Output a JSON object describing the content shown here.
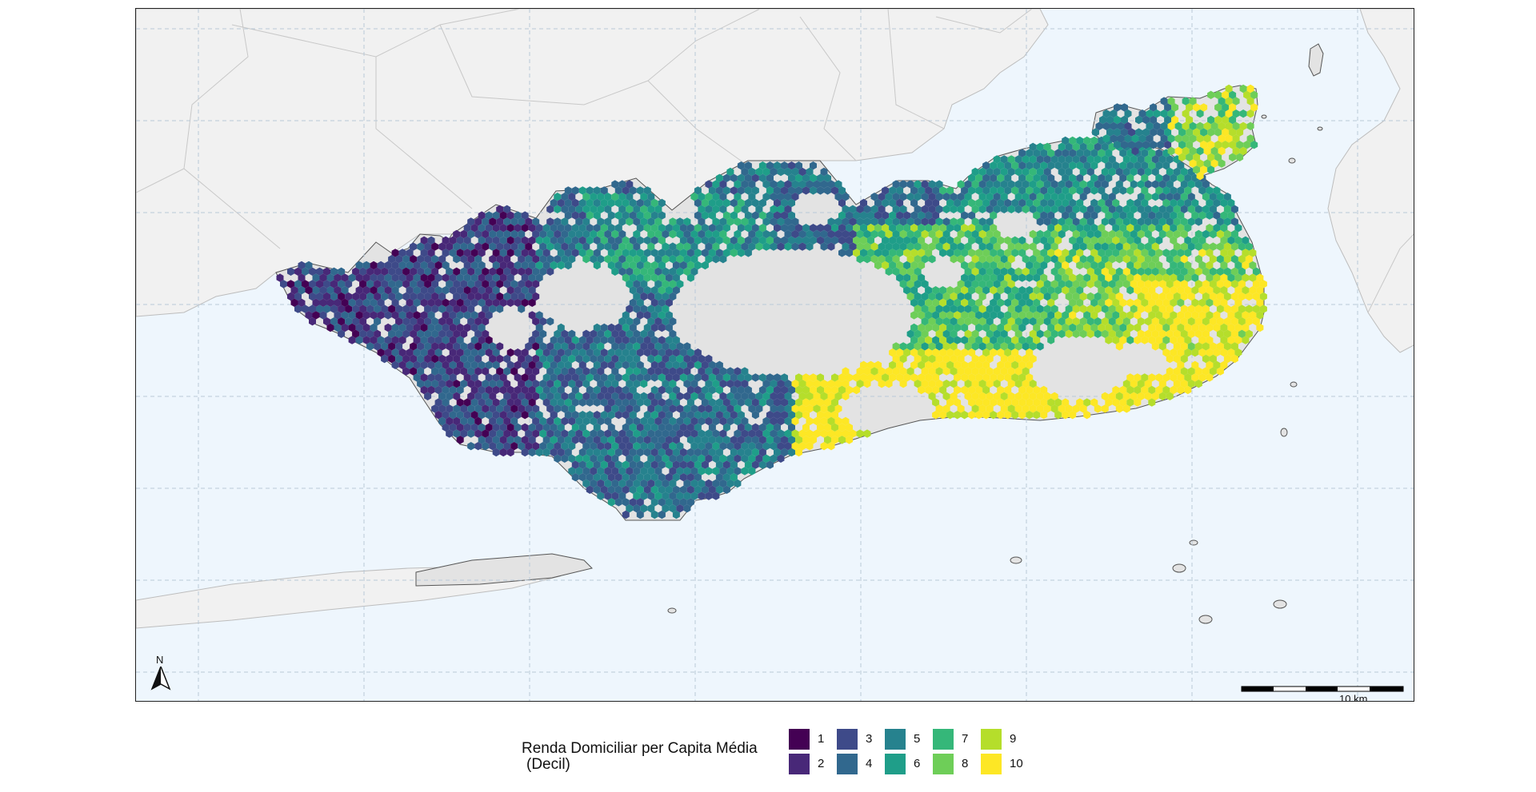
{
  "map": {
    "background_water": "#eef6fd",
    "land_outside": "#f1f1f1",
    "municipality_fill": "#e3e3e3",
    "gridline_color": "#b9c9d8",
    "scale_bar": {
      "label": "10 km"
    },
    "north_arrow": {
      "label": "N",
      "icon": "north-arrow-icon"
    }
  },
  "legend": {
    "title_line1": "Renda Domiciliar per Capita Média",
    "title_line2": "(Decil)",
    "items": [
      {
        "label": "1",
        "color": "#440154"
      },
      {
        "label": "2",
        "color": "#482878"
      },
      {
        "label": "3",
        "color": "#3e4a89"
      },
      {
        "label": "4",
        "color": "#31688e"
      },
      {
        "label": "5",
        "color": "#26828e"
      },
      {
        "label": "6",
        "color": "#1f9e89"
      },
      {
        "label": "7",
        "color": "#35b779"
      },
      {
        "label": "8",
        "color": "#6ece58"
      },
      {
        "label": "9",
        "color": "#b5de2b"
      },
      {
        "label": "10",
        "color": "#fde725"
      }
    ]
  }
}
